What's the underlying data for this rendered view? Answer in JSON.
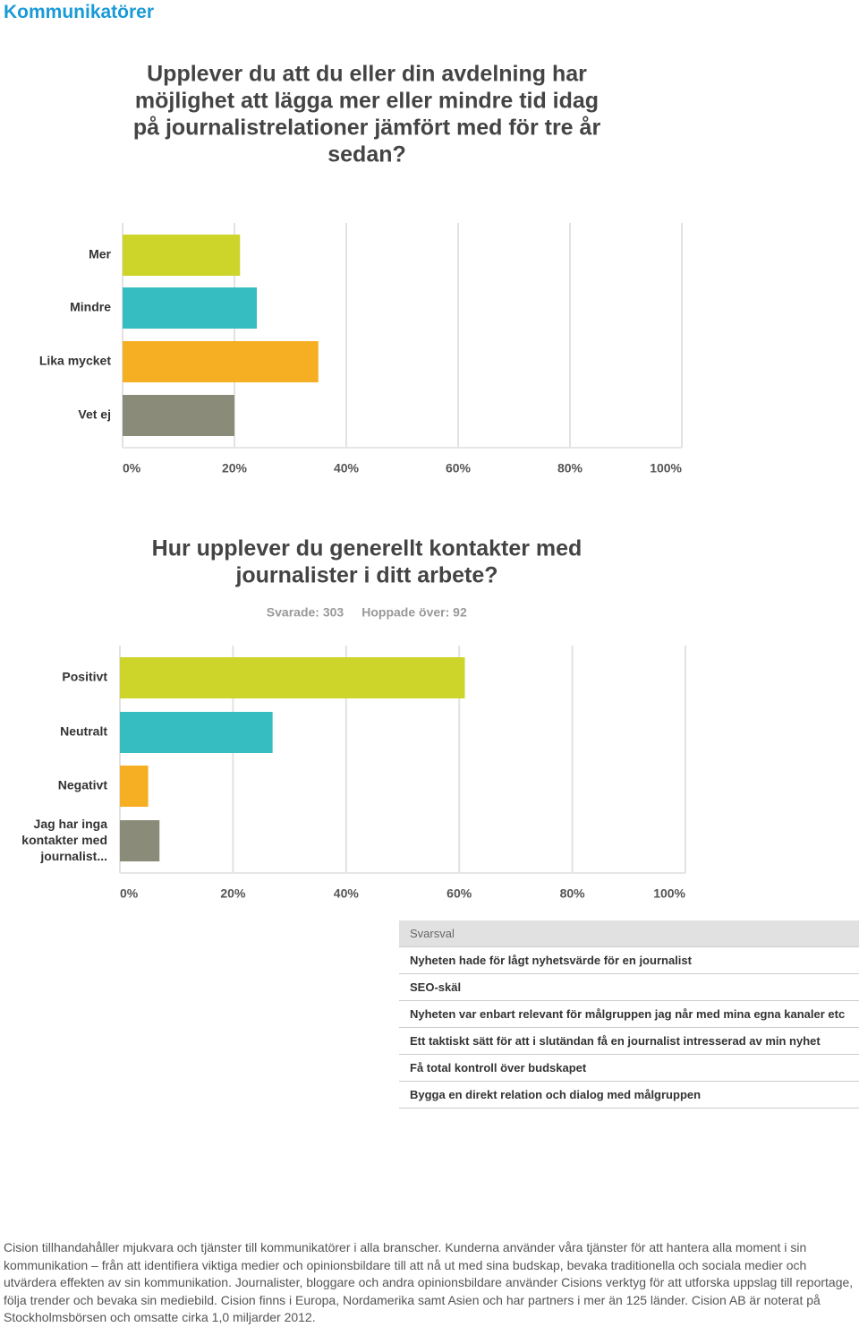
{
  "header": {
    "title": "Kommunikatörer"
  },
  "chart_data": [
    {
      "type": "barh",
      "title": [
        "Upplever du att du eller din avdelning har",
        "möjlighet att lägga mer eller mindre tid idag",
        "på journalistrelationer jämfört med för tre år",
        "sedan?"
      ],
      "categories": [
        "Mer",
        "Mindre",
        "Lika mycket",
        "Vet ej"
      ],
      "values": [
        21,
        24,
        35,
        20
      ],
      "colors": [
        "#cdd52b",
        "#35bdc1",
        "#f6ae22",
        "#8b8b7a"
      ],
      "xlim": [
        0,
        100
      ],
      "xticks": [
        {
          "value": 0,
          "label": "0%"
        },
        {
          "value": 20,
          "label": "20%"
        },
        {
          "value": 40,
          "label": "40%"
        },
        {
          "value": 60,
          "label": "60%"
        },
        {
          "value": 80,
          "label": "80%"
        },
        {
          "value": 100,
          "label": "100%"
        }
      ],
      "grid": true
    },
    {
      "type": "barh",
      "title": [
        "Hur upplever du generellt kontakter med",
        "journalister i ditt arbete?"
      ],
      "subtitle": [
        "Svarade: 303",
        "Hoppade över: 92"
      ],
      "categories": [
        "Positivt",
        "Neutralt",
        "Negativt",
        "Jag har inga kontakter med journalist..."
      ],
      "values": [
        61,
        27,
        5,
        7
      ],
      "colors": [
        "#cdd52b",
        "#35bdc1",
        "#f6ae22",
        "#8b8b7a"
      ],
      "xlim": [
        0,
        100
      ],
      "xticks": [
        {
          "value": 0,
          "label": "0%"
        },
        {
          "value": 20,
          "label": "20%"
        },
        {
          "value": 40,
          "label": "40%"
        },
        {
          "value": 60,
          "label": "60%"
        },
        {
          "value": 80,
          "label": "80%"
        },
        {
          "value": 100,
          "label": "100%"
        }
      ],
      "grid": true
    }
  ],
  "table": {
    "header": "Svarsval",
    "rows": [
      "Nyheten hade för lågt nyhetsvärde för en journalist",
      "SEO-skäl",
      "Nyheten var enbart relevant för målgruppen jag når med mina egna kanaler etc",
      "Ett taktiskt sätt för att i slutändan få en journalist intresserad av min nyhet",
      "Få total kontroll över budskapet",
      "Bygga en direkt relation och dialog med målgruppen"
    ]
  },
  "footer": {
    "text": "Cision tillhandahåller mjukvara och tjänster till kommunikatörer i alla branscher. Kunderna använder våra tjänster för att hantera alla moment i sin kommunikation – från att identifiera viktiga medier och opinionsbildare till att nå ut med sina budskap, bevaka traditionella och sociala medier och utvärdera effekten av sin kommunikation. Journalister, bloggare och andra opinionsbildare använder Cisions verktyg för att utforska uppslag till reportage, följa trender och bevaka sin mediebild. Cision finns i Europa, Nordamerika samt Asien och har partners i mer än 125 länder. Cision AB är noterat på Stockholmsbörsen och omsatte cirka 1,0 miljarder 2012."
  }
}
